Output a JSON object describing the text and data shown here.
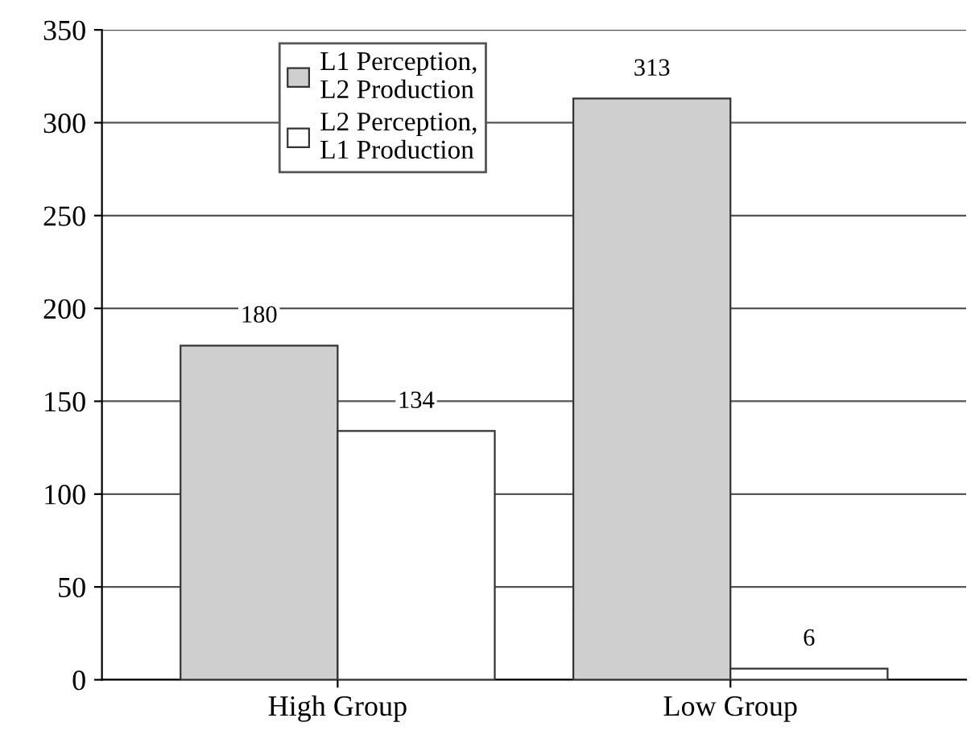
{
  "chart_data": {
    "type": "bar",
    "categories": [
      "High Group",
      "Low Group"
    ],
    "series": [
      {
        "name": "L1 Perception,\nL2 Production",
        "color": "#cfcfcf",
        "values": [
          180,
          313
        ]
      },
      {
        "name": "L2 Perception,\nL1 Production",
        "color": "#ffffff",
        "values": [
          134,
          6
        ]
      }
    ],
    "ylim": [
      0,
      350
    ],
    "yticks": [
      0,
      50,
      100,
      150,
      200,
      250,
      300,
      350
    ],
    "grid": "y",
    "legend": "top left",
    "data_labels": true
  }
}
